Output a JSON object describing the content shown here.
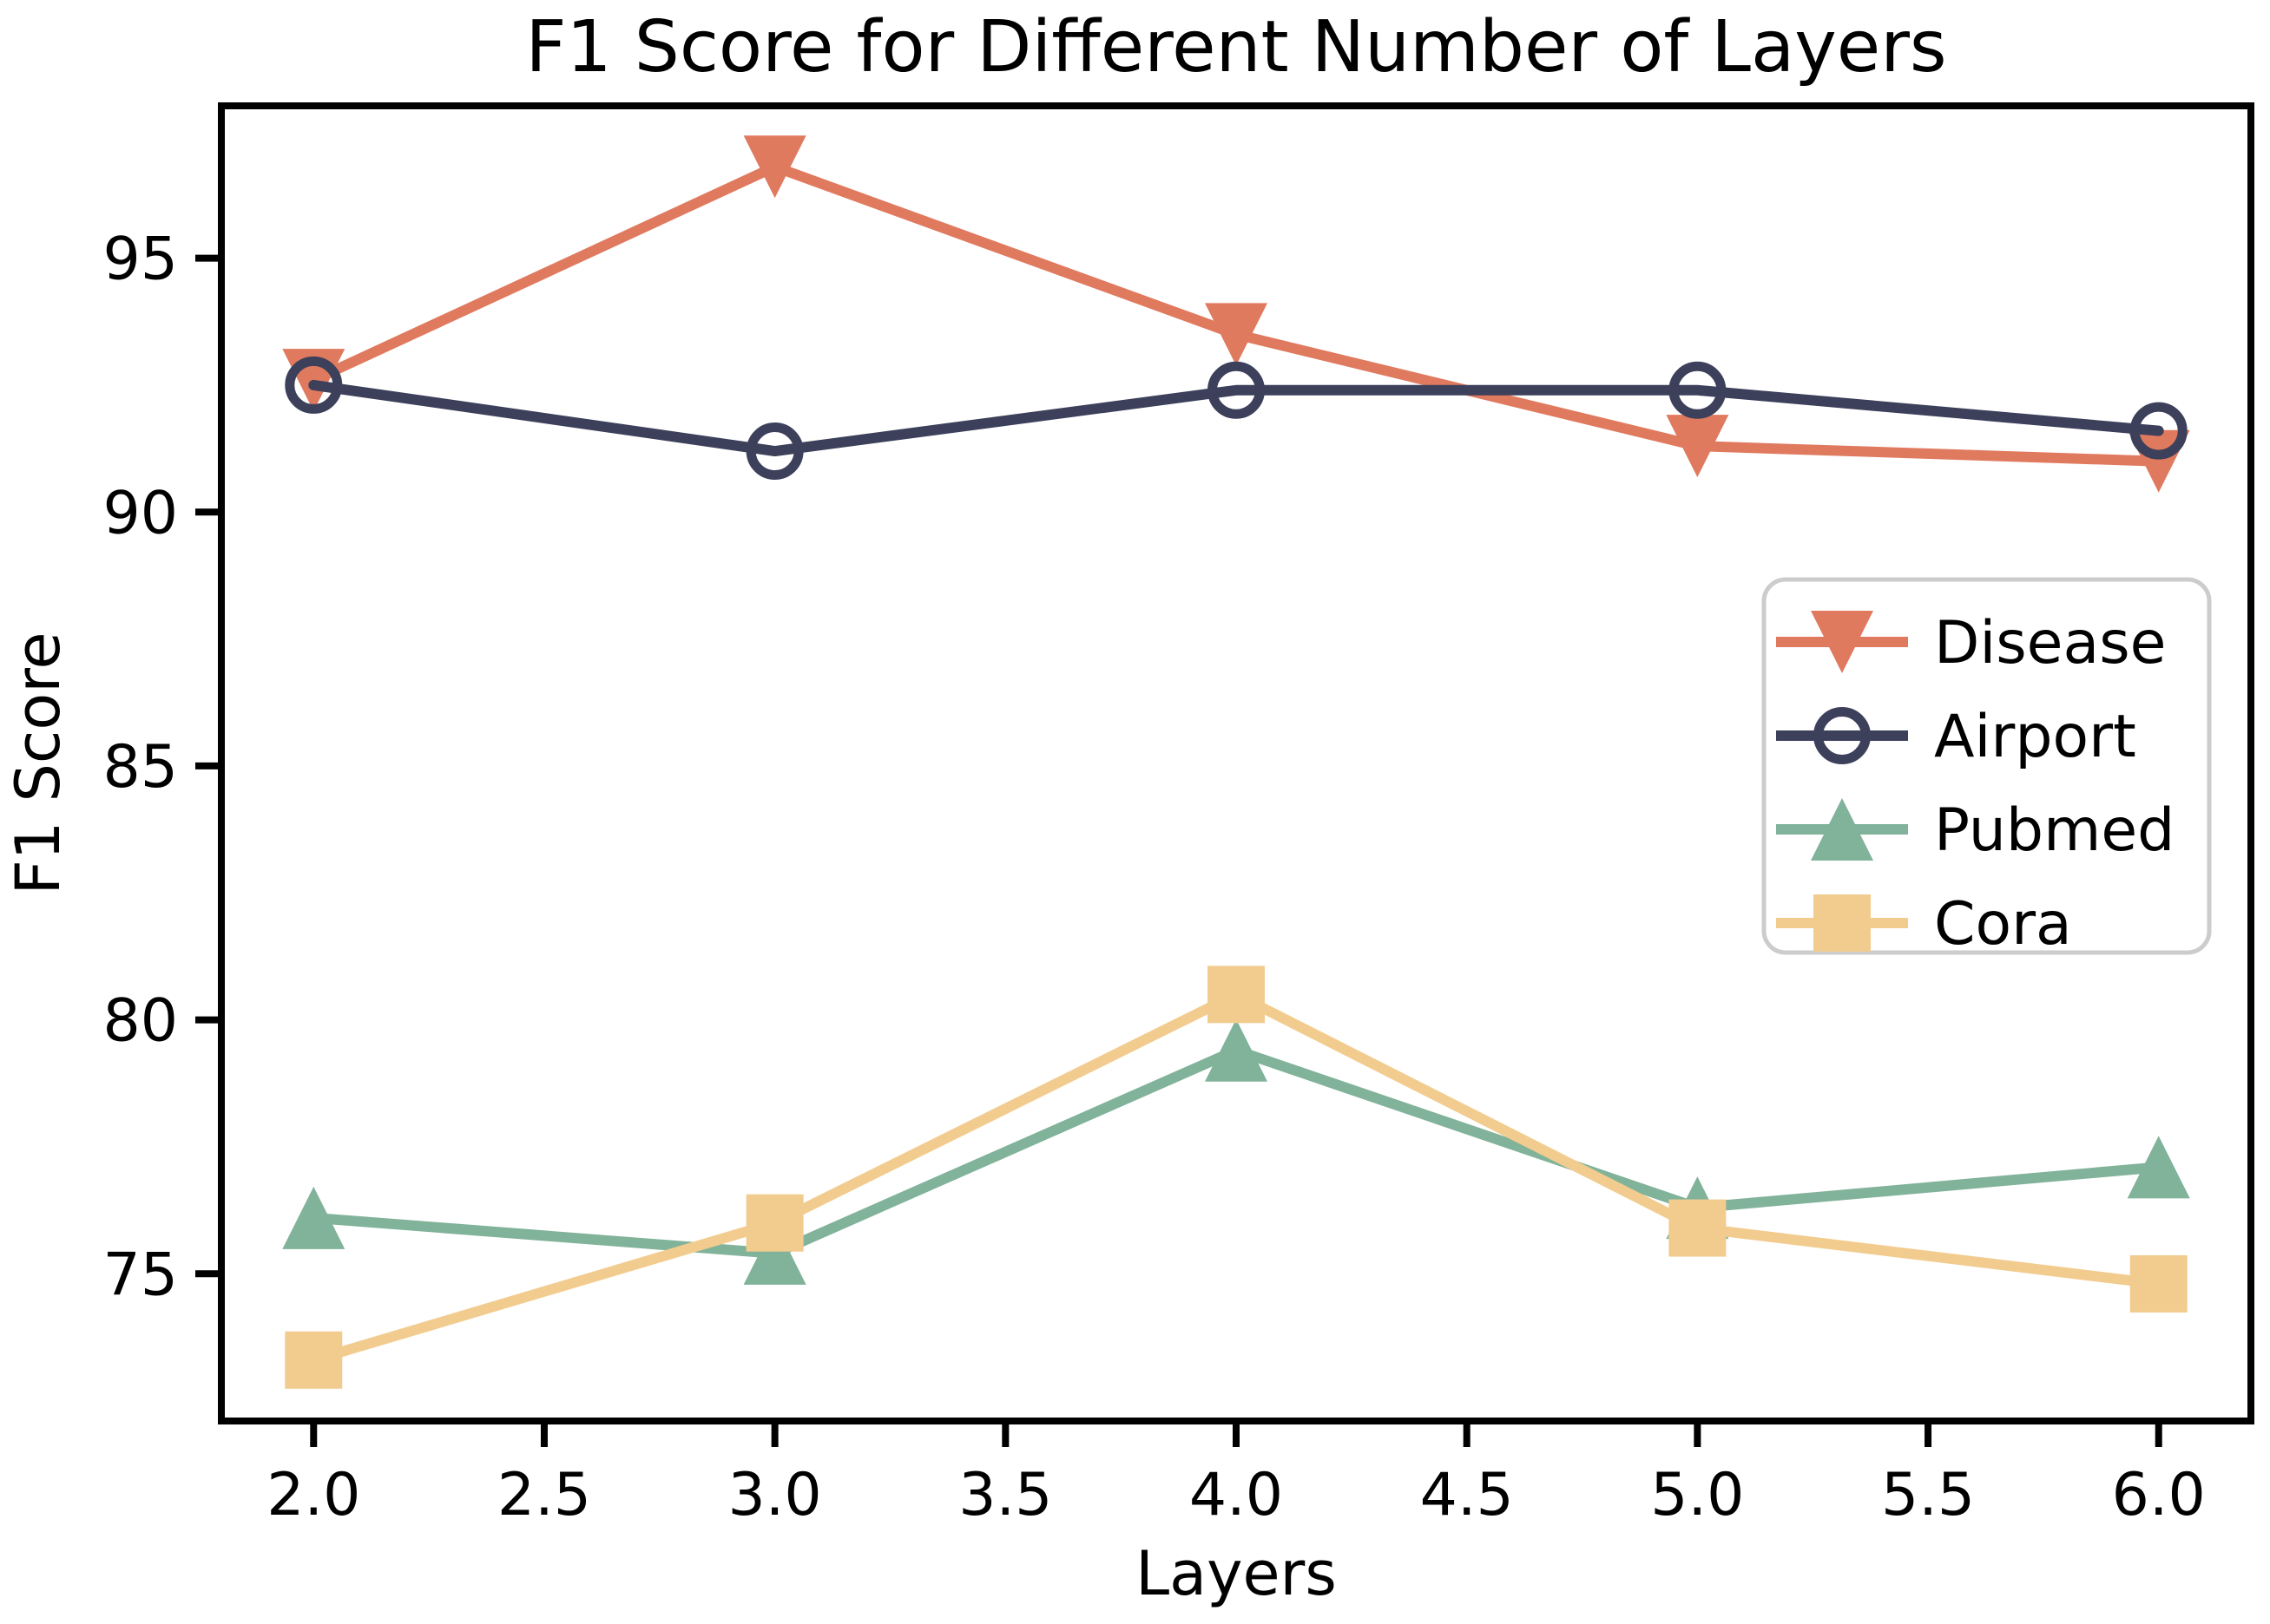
{
  "chart_data": {
    "type": "line",
    "title": "F1 Score for Different Number of Layers",
    "xlabel": "Layers",
    "ylabel": "F1 Score",
    "x": [
      2.0,
      3.0,
      4.0,
      5.0,
      6.0
    ],
    "series": [
      {
        "name": "Disease",
        "color": "#E07A5F",
        "marker": "triangle-down",
        "values": [
          92.6,
          96.8,
          93.5,
          91.3,
          91.0
        ]
      },
      {
        "name": "Airport",
        "color": "#3D405B",
        "marker": "circle-open",
        "values": [
          92.5,
          91.2,
          92.4,
          92.4,
          91.6
        ]
      },
      {
        "name": "Pubmed",
        "color": "#81B29A",
        "marker": "triangle-up",
        "values": [
          76.1,
          75.4,
          79.4,
          76.3,
          77.1
        ]
      },
      {
        "name": "Cora",
        "color": "#F2CC8F",
        "marker": "square",
        "values": [
          73.3,
          76.0,
          80.5,
          75.9,
          74.8
        ]
      }
    ],
    "xlim": [
      1.8,
      6.2
    ],
    "ylim": [
      72.1,
      98.0
    ],
    "xtick_labels": [
      "2.0",
      "2.5",
      "3.0",
      "3.5",
      "4.0",
      "4.5",
      "5.0",
      "5.5",
      "6.0"
    ],
    "xtick_values": [
      2.0,
      2.5,
      3.0,
      3.5,
      4.0,
      4.5,
      5.0,
      5.5,
      6.0
    ],
    "ytick_labels": [
      "75",
      "80",
      "85",
      "90",
      "95"
    ],
    "ytick_values": [
      75,
      80,
      85,
      90,
      95
    ],
    "grid": false,
    "legend_position": "center-right",
    "axis_color": "#000000",
    "legend_border_color": "#cccccc",
    "legend_background": "#ffffff"
  }
}
